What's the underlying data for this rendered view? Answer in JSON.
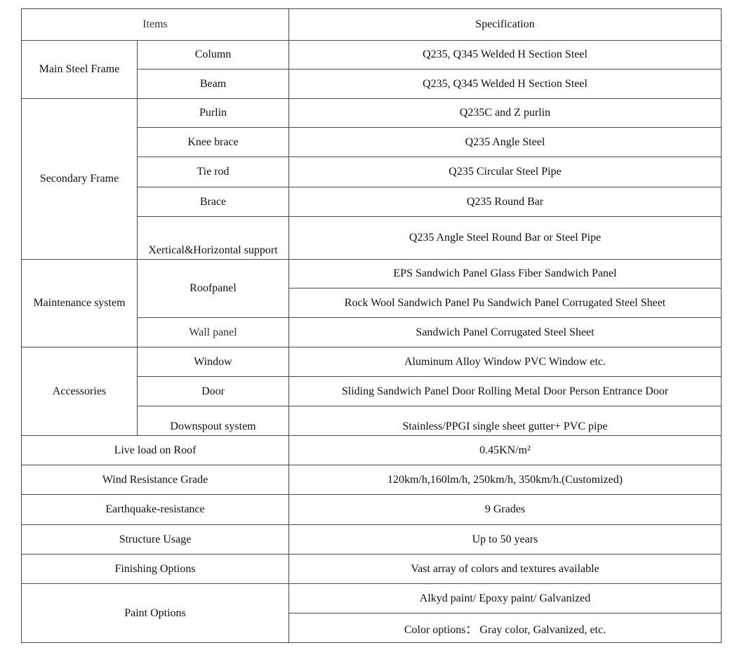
{
  "header": {
    "items": "Items",
    "specification": "Specification"
  },
  "groups": [
    {
      "label": "Main Steel Frame",
      "rows": [
        {
          "item": "Column",
          "specs": [
            "Q235, Q345 Welded H Section Steel"
          ]
        },
        {
          "item": "Beam",
          "specs": [
            "Q235, Q345 Welded H Section Steel"
          ]
        }
      ]
    },
    {
      "label": "Secondary Frame",
      "rows": [
        {
          "item": "Purlin",
          "specs": [
            "Q235C and Z purlin"
          ]
        },
        {
          "item": "Knee brace",
          "specs": [
            "Q235 Angle Steel"
          ]
        },
        {
          "item": "Tie rod",
          "specs": [
            "Q235 Circular Steel Pipe"
          ]
        },
        {
          "item": "Brace",
          "specs": [
            "Q235 Round Bar"
          ]
        },
        {
          "item": "Xertical&Horizontal support",
          "specs": [
            "Q235 Angle Steel Round Bar or Steel Pipe"
          ]
        }
      ]
    },
    {
      "label": "Maintenance system",
      "rows": [
        {
          "item": "Roofpanel",
          "specs": [
            "EPS Sandwich Panel Glass Fiber Sandwich Panel",
            "Rock Wool Sandwich Panel Pu Sandwich Panel Corrugated Steel Sheet"
          ]
        },
        {
          "item": "Wall panel",
          "specs": [
            "Sandwich Panel Corrugated Steel Sheet"
          ]
        }
      ]
    },
    {
      "label": "Accessories",
      "rows": [
        {
          "item": "Window",
          "specs": [
            "Aluminum Alloy Window PVC Window etc."
          ]
        },
        {
          "item": "Door",
          "specs": [
            "Sliding Sandwich Panel Door Rolling Metal Door Person Entrance Door"
          ]
        },
        {
          "item": "Downspout system",
          "specs": [
            "Stainless/PPGI single sheet gutter+ PVC pipe"
          ]
        }
      ]
    },
    {
      "label": "Live load on Roof",
      "specs": [
        "0.45KN/m²"
      ]
    },
    {
      "label": "Wind Resistance Grade",
      "specs": [
        "120km/h,160lm/h, 250km/h, 350km/h.(Customized)"
      ]
    },
    {
      "label": "Earthquake-resistance",
      "specs": [
        "9 Grades"
      ]
    },
    {
      "label": "Structure Usage",
      "specs": [
        "Up to 50 years"
      ]
    },
    {
      "label": "Finishing Options",
      "specs": [
        "Vast array of colors and textures available"
      ]
    },
    {
      "label": "Paint Options",
      "specs": [
        "Alkyd paint/ Epoxy paint/ Galvanized",
        "Color options： Gray color, Galvanized, etc."
      ]
    }
  ]
}
